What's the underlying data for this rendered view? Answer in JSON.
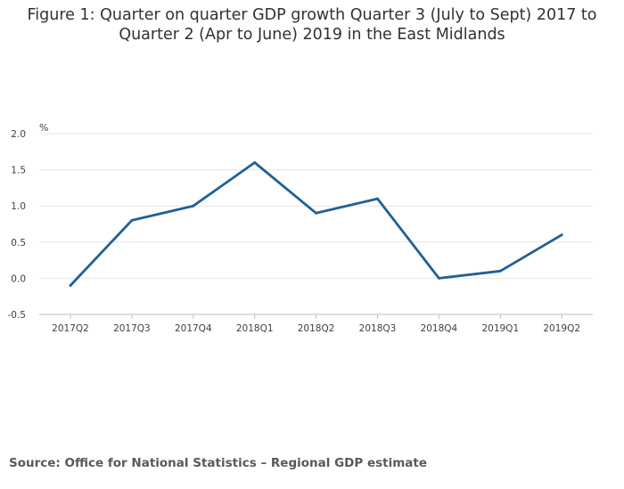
{
  "chart_data": {
    "type": "line",
    "title_lines": [
      "Figure 1: Quarter on quarter GDP growth Quarter 3 (July to Sept) 2017 to",
      "Quarter 2 (Apr to June) 2019 in the East Midlands"
    ],
    "ylabel": "%",
    "xlabel": "",
    "categories": [
      "2017Q2",
      "2017Q3",
      "2017Q4",
      "2018Q1",
      "2018Q2",
      "2018Q3",
      "2018Q4",
      "2019Q1",
      "2019Q2"
    ],
    "series": [
      {
        "values": [
          -0.1,
          0.8,
          1.0,
          1.6,
          0.9,
          1.1,
          0.0,
          0.1,
          0.6
        ],
        "color": "#206095"
      }
    ],
    "ylim": [
      -0.5,
      2.0
    ],
    "yticks": [
      "2.0",
      "1.5",
      "1.0",
      "0.5",
      "0.0",
      "-0.5"
    ],
    "grid": true,
    "legend": "none"
  },
  "source": "Source: Office for National Statistics – Regional GDP estimate"
}
